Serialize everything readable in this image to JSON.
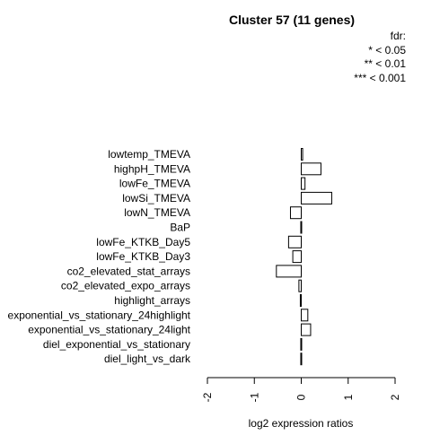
{
  "chart_data": {
    "type": "bar",
    "orientation": "horizontal",
    "title": "Cluster 57 (11 genes)",
    "xlabel": "log2 expression ratios",
    "ylabel": "",
    "xlim": [
      -2,
      2
    ],
    "x_ticks": [
      "-2",
      "-1",
      "0",
      "1",
      "2"
    ],
    "legend": {
      "title": "fdr:",
      "items": [
        "* < 0.05",
        "** < 0.01",
        "*** < 0.001"
      ],
      "placement": "top-right"
    },
    "categories": [
      "lowtemp_TMEVA",
      "highpH_TMEVA",
      "lowFe_TMEVA",
      "lowSi_TMEVA",
      "lowN_TMEVA",
      "BaP",
      "lowFe_KTKB_Day5",
      "lowFe_KTKB_Day3",
      "co2_elevated_stat_arrays",
      "co2_elevated_expo_arrays",
      "highlight_arrays",
      "exponential_vs_stationary_24highlight",
      "exponential_vs_stationary_24light",
      "diel_exponential_vs_stationary",
      "diel_light_vs_dark"
    ],
    "values": [
      0.03,
      0.42,
      0.08,
      0.65,
      -0.23,
      -0.01,
      -0.27,
      -0.18,
      -0.53,
      -0.05,
      -0.02,
      0.14,
      0.2,
      -0.01,
      -0.01
    ],
    "grid": false
  }
}
